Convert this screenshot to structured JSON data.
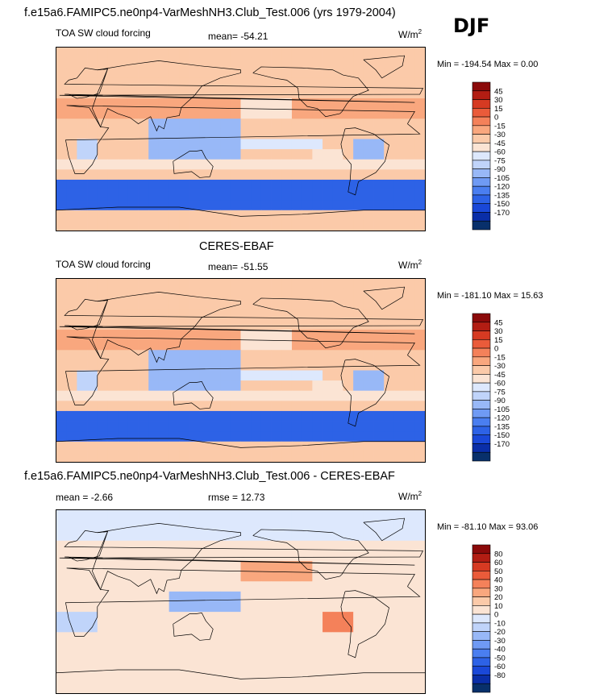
{
  "header": {
    "title": "f.e15a6.FAMIPC5.ne0np4-VarMeshNH3.Club_Test.006 (yrs 1979-2004)",
    "season": "DJF"
  },
  "colors": {
    "cf_scale": [
      "#08306b",
      "#0a2ea8",
      "#1a48d8",
      "#2d62e6",
      "#4a7ef0",
      "#6f9af4",
      "#98b8f7",
      "#c0d4fa",
      "#dde8fd",
      "#fbe4d4",
      "#fbcaa9",
      "#f9a77e",
      "#f4815a",
      "#ea5b3a",
      "#d63a22",
      "#b21d13",
      "#8b0a0a"
    ],
    "diff_scale": [
      "#08306b",
      "#0a2ea8",
      "#1a48d8",
      "#2d62e6",
      "#4a7ef0",
      "#6f9af4",
      "#98b8f7",
      "#c0d4fa",
      "#dde8fd",
      "#fbe4d4",
      "#fbcaa9",
      "#f9a77e",
      "#f4815a",
      "#ea5b3a",
      "#d63a22",
      "#b21d13",
      "#8b0a0a"
    ]
  },
  "panels": [
    {
      "heading": "",
      "left_label": "TOA SW cloud forcing",
      "mid_label": "mean= -54.21",
      "units_base": "W/m",
      "units_exp": "2",
      "min_label": "Min = -194.54",
      "max_label": "Max =   0.00",
      "colorbar_labels": [
        "45",
        "30",
        "15",
        "0",
        "-15",
        "-30",
        "-45",
        "-60",
        "-75",
        "-90",
        "-105",
        "-120",
        "-135",
        "-150",
        "-170"
      ],
      "kind": "model"
    },
    {
      "heading": "CERES-EBAF",
      "left_label": "TOA SW cloud forcing",
      "mid_label": "mean= -51.55",
      "units_base": "W/m",
      "units_exp": "2",
      "min_label": "Min = -181.10",
      "max_label": "Max =  15.63",
      "colorbar_labels": [
        "45",
        "30",
        "15",
        "0",
        "-15",
        "-30",
        "-45",
        "-60",
        "-75",
        "-90",
        "-105",
        "-120",
        "-135",
        "-150",
        "-170"
      ],
      "kind": "obs"
    },
    {
      "heading": "f.e15a6.FAMIPC5.ne0np4-VarMeshNH3.Club_Test.006 - CERES-EBAF",
      "left_label": "mean =  -2.66",
      "mid_label": "rmse =  12.73",
      "units_base": "W/m",
      "units_exp": "2",
      "min_label": "Min = -81.10",
      "max_label": "Max =  93.06",
      "colorbar_labels": [
        "80",
        "60",
        "50",
        "40",
        "30",
        "20",
        "10",
        "0",
        "-10",
        "-20",
        "-30",
        "-40",
        "-50",
        "-60",
        "-80"
      ],
      "kind": "diff"
    }
  ]
}
